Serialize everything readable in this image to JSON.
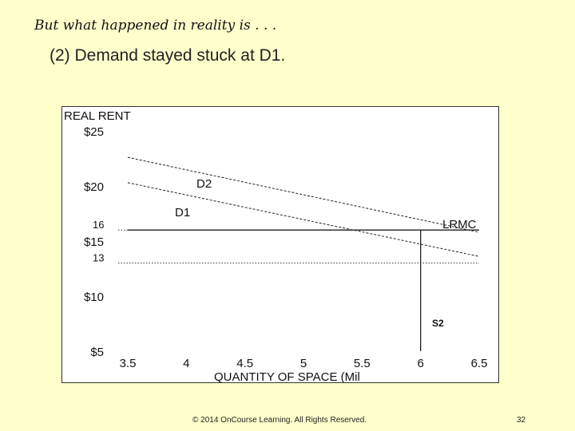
{
  "slide": {
    "title": "But what happened in reality is . . .",
    "subtitle": "(2) Demand stayed stuck at D1.",
    "footer": "© 2014 OnCourse Learning. All Rights Reserved.",
    "page_number": "32"
  },
  "chart_data": {
    "type": "line",
    "ylabel": "REAL RENT",
    "xlabel": "QUANTITY OF SPACE (Mil",
    "x_ticks": [
      "3.5",
      "4",
      "4.5",
      "5",
      "5.5",
      "6",
      "6.5"
    ],
    "y_ticks": [
      "$25",
      "$20",
      "$15",
      "$10",
      "$5"
    ],
    "y_tick_values": [
      25,
      20,
      15,
      10,
      5
    ],
    "xlim": [
      3.5,
      6.5
    ],
    "ylim": [
      5,
      25
    ],
    "grid": false,
    "series": [
      {
        "name": "D2",
        "points": [
          [
            3.5,
            22.6
          ],
          [
            6.5,
            15.8
          ]
        ],
        "style": "dashed"
      },
      {
        "name": "D1",
        "points": [
          [
            3.5,
            20.3
          ],
          [
            6.5,
            13.6
          ]
        ],
        "style": "dashed"
      },
      {
        "name": "LRMC",
        "points": [
          [
            3.5,
            16
          ],
          [
            6.5,
            16
          ]
        ],
        "style": "solid"
      },
      {
        "name": "S2",
        "points": [
          [
            6.0,
            5
          ],
          [
            6.0,
            16
          ]
        ],
        "style": "solid"
      }
    ],
    "reference_lines": [
      {
        "label": "16",
        "y": 16,
        "style": "dotted"
      },
      {
        "label": "13",
        "y": 13,
        "style": "dotted"
      }
    ]
  }
}
